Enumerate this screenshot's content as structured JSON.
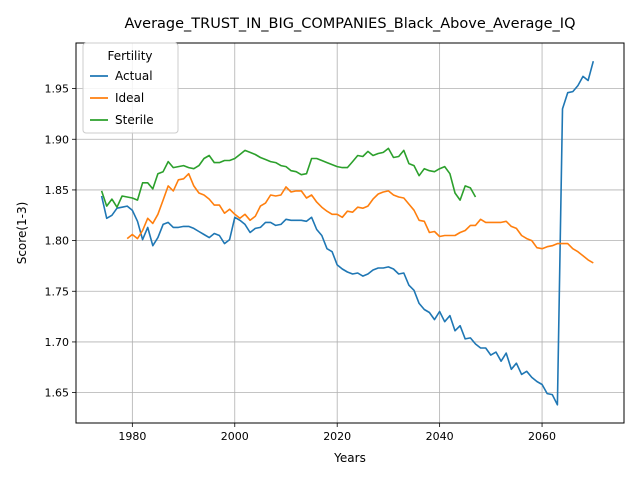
{
  "chart_data": {
    "type": "line",
    "title": "Average_TRUST_IN_BIG_COMPANIES_Black_Above_Average_IQ",
    "xlabel": "Years",
    "ylabel": "Score(1-3)",
    "xlim": [
      1969,
      2076
    ],
    "ylim": [
      1.62,
      1.995
    ],
    "xticks": [
      1980,
      2000,
      2020,
      2040,
      2060
    ],
    "yticks": [
      1.65,
      1.7,
      1.75,
      1.8,
      1.85,
      1.9,
      1.95
    ],
    "ytick_labels": [
      "1.65",
      "1.70",
      "1.75",
      "1.80",
      "1.85",
      "1.90",
      "1.95"
    ],
    "grid": true,
    "legend": {
      "title": "Fertility",
      "placement": "top-left"
    },
    "series": [
      {
        "name": "Actual",
        "color": "#1f77b4",
        "x": [
          1974,
          1975,
          1976,
          1977,
          1978,
          1979,
          1980,
          1981,
          1982,
          1983,
          1984,
          1985,
          1986,
          1987,
          1988,
          1989,
          1990,
          1991,
          1992,
          1993,
          1994,
          1995,
          1996,
          1997,
          1998,
          1999,
          2000,
          2001,
          2002,
          2003,
          2004,
          2005,
          2006,
          2007,
          2008,
          2009,
          2010,
          2011,
          2012,
          2013,
          2014,
          2015,
          2016,
          2017,
          2018,
          2019,
          2020,
          2021,
          2022,
          2023,
          2024,
          2025,
          2026,
          2027,
          2028,
          2029,
          2030,
          2031,
          2032,
          2033,
          2034,
          2035,
          2036,
          2037,
          2038,
          2039,
          2040,
          2041,
          2042,
          2043,
          2044,
          2045,
          2046,
          2047,
          2048,
          2049,
          2050,
          2051,
          2052,
          2053,
          2054,
          2055,
          2056,
          2057,
          2058,
          2059,
          2060,
          2061,
          2062,
          2063,
          2064,
          2065,
          2066,
          2067,
          2068,
          2069,
          2070
        ],
        "y": [
          1.844,
          1.822,
          1.825,
          1.832,
          1.833,
          1.834,
          1.83,
          1.819,
          1.801,
          1.813,
          1.795,
          1.803,
          1.816,
          1.818,
          1.813,
          1.813,
          1.814,
          1.814,
          1.812,
          1.809,
          1.806,
          1.803,
          1.807,
          1.805,
          1.797,
          1.801,
          1.823,
          1.82,
          1.816,
          1.808,
          1.812,
          1.813,
          1.818,
          1.818,
          1.815,
          1.816,
          1.821,
          1.82,
          1.82,
          1.82,
          1.819,
          1.823,
          1.811,
          1.805,
          1.792,
          1.789,
          1.776,
          1.772,
          1.769,
          1.767,
          1.768,
          1.765,
          1.767,
          1.771,
          1.773,
          1.773,
          1.774,
          1.772,
          1.767,
          1.768,
          1.756,
          1.751,
          1.738,
          1.732,
          1.729,
          1.722,
          1.73,
          1.72,
          1.726,
          1.711,
          1.716,
          1.703,
          1.704,
          1.698,
          1.694,
          1.694,
          1.687,
          1.69,
          1.681,
          1.689,
          1.673,
          1.679,
          1.668,
          1.671,
          1.665,
          1.661,
          1.658,
          1.649,
          1.648,
          1.638,
          1.93,
          1.946,
          1.947,
          1.953,
          1.962,
          1.958,
          1.977
        ]
      },
      {
        "name": "Ideal",
        "color": "#ff7f0e",
        "x": [
          1979,
          1980,
          1981,
          1982,
          1983,
          1984,
          1985,
          1986,
          1987,
          1988,
          1989,
          1990,
          1991,
          1992,
          1993,
          1994,
          1995,
          1996,
          1997,
          1998,
          1999,
          2000,
          2001,
          2002,
          2003,
          2004,
          2005,
          2006,
          2007,
          2008,
          2009,
          2010,
          2011,
          2012,
          2013,
          2014,
          2015,
          2016,
          2017,
          2018,
          2019,
          2020,
          2021,
          2022,
          2023,
          2024,
          2025,
          2026,
          2027,
          2028,
          2029,
          2030,
          2031,
          2032,
          2033,
          2034,
          2035,
          2036,
          2037,
          2038,
          2039,
          2040,
          2041,
          2042,
          2043,
          2044,
          2045,
          2046,
          2047,
          2048,
          2049,
          2050,
          2051,
          2052,
          2053,
          2054,
          2055,
          2056,
          2057,
          2058,
          2059,
          2060,
          2061,
          2062,
          2063,
          2064,
          2065,
          2066,
          2067,
          2068,
          2069,
          2070
        ],
        "y": [
          1.802,
          1.806,
          1.802,
          1.81,
          1.822,
          1.817,
          1.826,
          1.84,
          1.854,
          1.849,
          1.86,
          1.861,
          1.866,
          1.854,
          1.847,
          1.845,
          1.841,
          1.835,
          1.835,
          1.827,
          1.831,
          1.826,
          1.822,
          1.826,
          1.82,
          1.824,
          1.834,
          1.837,
          1.845,
          1.844,
          1.845,
          1.853,
          1.848,
          1.849,
          1.849,
          1.842,
          1.845,
          1.838,
          1.833,
          1.829,
          1.826,
          1.826,
          1.823,
          1.829,
          1.828,
          1.833,
          1.832,
          1.834,
          1.841,
          1.846,
          1.848,
          1.849,
          1.845,
          1.843,
          1.842,
          1.836,
          1.83,
          1.82,
          1.819,
          1.808,
          1.809,
          1.804,
          1.805,
          1.805,
          1.805,
          1.808,
          1.81,
          1.815,
          1.815,
          1.821,
          1.818,
          1.818,
          1.818,
          1.818,
          1.819,
          1.814,
          1.812,
          1.805,
          1.802,
          1.8,
          1.793,
          1.792,
          1.794,
          1.795,
          1.797,
          1.797,
          1.797,
          1.792,
          1.789,
          1.785,
          1.781,
          1.778
        ]
      },
      {
        "name": "Sterile",
        "color": "#2ca02c",
        "x": [
          1974,
          1975,
          1976,
          1977,
          1978,
          1979,
          1980,
          1981,
          1982,
          1983,
          1984,
          1985,
          1986,
          1987,
          1988,
          1989,
          1990,
          1991,
          1992,
          1993,
          1994,
          1995,
          1996,
          1997,
          1998,
          1999,
          2000,
          2001,
          2002,
          2003,
          2004,
          2005,
          2006,
          2007,
          2008,
          2009,
          2010,
          2011,
          2012,
          2013,
          2014,
          2015,
          2016,
          2017,
          2018,
          2019,
          2020,
          2021,
          2022,
          2023,
          2024,
          2025,
          2026,
          2027,
          2028,
          2029,
          2030,
          2031,
          2032,
          2033,
          2034,
          2035,
          2036,
          2037,
          2038,
          2039,
          2040,
          2041,
          2042,
          2043,
          2044,
          2045,
          2046,
          2047
        ],
        "y": [
          1.849,
          1.834,
          1.841,
          1.833,
          1.844,
          1.843,
          1.842,
          1.84,
          1.857,
          1.857,
          1.851,
          1.866,
          1.868,
          1.878,
          1.872,
          1.873,
          1.874,
          1.872,
          1.871,
          1.874,
          1.881,
          1.884,
          1.877,
          1.877,
          1.879,
          1.879,
          1.881,
          1.885,
          1.889,
          1.887,
          1.885,
          1.882,
          1.88,
          1.878,
          1.877,
          1.874,
          1.873,
          1.869,
          1.868,
          1.865,
          1.866,
          1.881,
          1.881,
          1.879,
          1.877,
          1.875,
          1.873,
          1.872,
          1.872,
          1.878,
          1.884,
          1.883,
          1.888,
          1.884,
          1.886,
          1.887,
          1.891,
          1.882,
          1.883,
          1.889,
          1.876,
          1.874,
          1.864,
          1.871,
          1.869,
          1.868,
          1.871,
          1.873,
          1.866,
          1.847,
          1.84,
          1.854,
          1.852,
          1.843
        ]
      }
    ]
  }
}
